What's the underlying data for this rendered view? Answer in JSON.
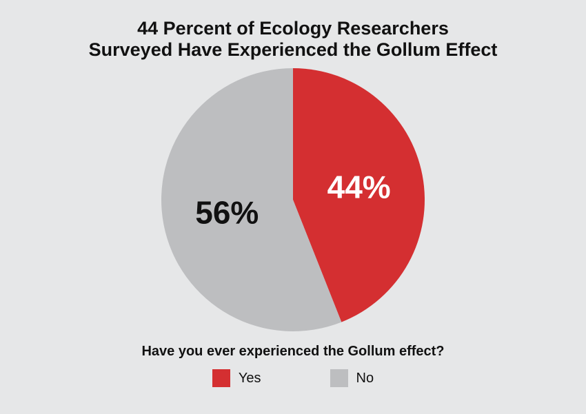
{
  "chart_data": {
    "type": "pie",
    "title_lines": [
      "44 Percent of Ecology Researchers",
      "Surveyed Have Experienced the Gollum Effect"
    ],
    "question": "Have you ever experienced the Gollum effect?",
    "slices": [
      {
        "name": "Yes",
        "value": 44,
        "label": "44%",
        "color": "#d42f31",
        "label_color": "#ffffff"
      },
      {
        "name": "No",
        "value": 56,
        "label": "56%",
        "color": "#bdbec0",
        "label_color": "#111111"
      }
    ],
    "start": "12 o'clock, clockwise",
    "legend_position": "bottom"
  }
}
